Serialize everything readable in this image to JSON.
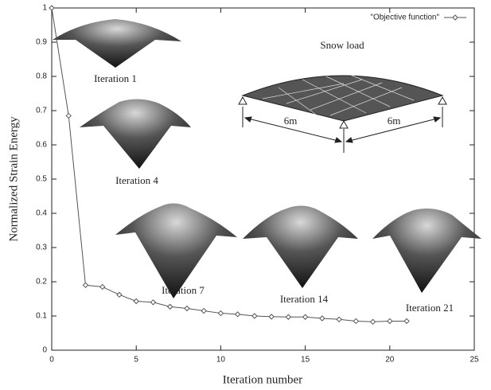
{
  "chart_data": {
    "type": "line",
    "xlabel": "Iteration number",
    "ylabel": "Normalized Strain Energy",
    "x": [
      0,
      1,
      2,
      3,
      4,
      5,
      6,
      7,
      8,
      9,
      10,
      11,
      12,
      13,
      14,
      15,
      16,
      17,
      18,
      19,
      20,
      21
    ],
    "series": [
      {
        "name": "\"Objective function\"",
        "color": "#555555",
        "values": [
          1.0,
          0.685,
          0.19,
          0.185,
          0.162,
          0.143,
          0.14,
          0.127,
          0.122,
          0.115,
          0.108,
          0.105,
          0.1,
          0.098,
          0.097,
          0.097,
          0.093,
          0.09,
          0.085,
          0.083,
          0.085,
          0.085
        ]
      }
    ],
    "xlim": [
      0,
      25
    ],
    "xticks": [
      0,
      5,
      10,
      15,
      20,
      25
    ],
    "ylim": [
      0,
      1
    ],
    "yticks": [
      0,
      0.1,
      0.2,
      0.3,
      0.4,
      0.5,
      0.6,
      0.7,
      0.8,
      0.9,
      1
    ],
    "grid": false,
    "legend": "top-right",
    "annotations": [
      "Iteration 1",
      "Iteration 4",
      "Iteration 7",
      "Iteration 14",
      "Iteration 21",
      "Snow load",
      "6m",
      "6m"
    ]
  }
}
